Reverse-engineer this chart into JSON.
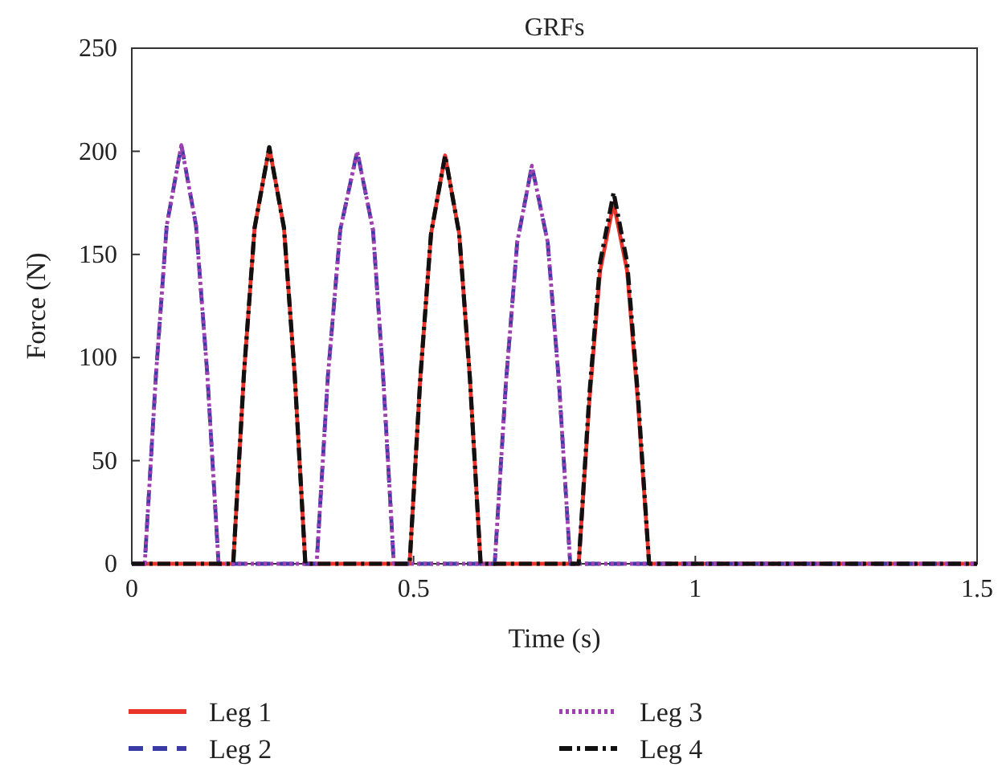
{
  "chart_data": {
    "type": "line",
    "title": "GRFs",
    "xlabel": "Time (s)",
    "ylabel": "Force (N)",
    "xlim": [
      0,
      1.5
    ],
    "xticks": [
      0,
      0.5,
      1,
      1.5
    ],
    "ylim": [
      0,
      250
    ],
    "yticks": [
      0,
      50,
      100,
      150,
      200,
      250
    ],
    "grid": false,
    "legend": "bottom",
    "marker": "none",
    "series": [
      {
        "name": "Leg 1",
        "color": "#e8342a",
        "line_style": "solid",
        "x": [
          0,
          0.18,
          0.199,
          0.218,
          0.244,
          0.27,
          0.289,
          0.308,
          0.493,
          0.512,
          0.531,
          0.556,
          0.581,
          0.6,
          0.619,
          0.793,
          0.812,
          0.831,
          0.855,
          0.879,
          0.898,
          0.918,
          1.5
        ],
        "values": [
          0,
          0,
          92,
          163,
          202,
          163,
          92,
          0,
          0,
          90,
          160,
          198,
          160,
          90,
          0,
          0,
          79,
          142,
          175,
          142,
          79,
          0,
          0
        ]
      },
      {
        "name": "Leg 2",
        "color": "#3b3ba6",
        "line_style": "dashed",
        "x": [
          0,
          0.023,
          0.043,
          0.062,
          0.088,
          0.114,
          0.134,
          0.154,
          0.328,
          0.348,
          0.37,
          0.4,
          0.428,
          0.446,
          0.465,
          0.644,
          0.664,
          0.684,
          0.71,
          0.738,
          0.758,
          0.778,
          1.5
        ],
        "values": [
          0,
          0,
          92,
          164,
          203,
          164,
          92,
          0,
          0,
          91,
          162,
          200,
          162,
          91,
          0,
          0,
          88,
          156,
          193,
          156,
          88,
          0,
          0
        ]
      },
      {
        "name": "Leg 3",
        "color": "#a040b0",
        "line_style": "dotted",
        "x": [
          0,
          0.023,
          0.043,
          0.062,
          0.088,
          0.114,
          0.134,
          0.154,
          0.328,
          0.348,
          0.37,
          0.4,
          0.428,
          0.446,
          0.465,
          0.644,
          0.664,
          0.684,
          0.71,
          0.738,
          0.758,
          0.778,
          1.5
        ],
        "values": [
          0,
          0,
          92,
          164,
          203,
          164,
          92,
          0,
          0,
          91,
          162,
          200,
          162,
          91,
          0,
          0,
          88,
          156,
          193,
          156,
          88,
          0,
          0
        ]
      },
      {
        "name": "Leg 4",
        "color": "#111111",
        "line_style": "dashdot",
        "x": [
          0,
          0.18,
          0.199,
          0.218,
          0.244,
          0.27,
          0.289,
          0.308,
          0.493,
          0.512,
          0.531,
          0.556,
          0.581,
          0.6,
          0.619,
          0.793,
          0.812,
          0.831,
          0.855,
          0.879,
          0.898,
          0.918,
          1.5
        ],
        "values": [
          0,
          0,
          92,
          163,
          202,
          163,
          92,
          0,
          0,
          90,
          160,
          198,
          160,
          90,
          0,
          0,
          82,
          146,
          180,
          146,
          82,
          0,
          0
        ]
      }
    ]
  }
}
